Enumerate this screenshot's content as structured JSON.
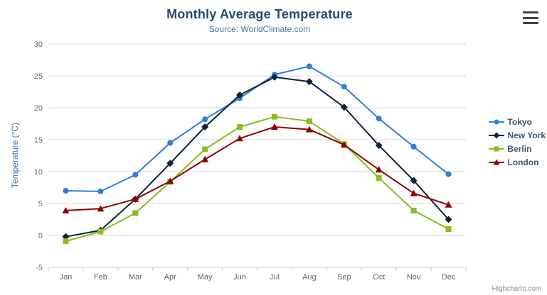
{
  "header": {
    "title": "Monthly Average Temperature",
    "subtitle": "Source: WorldClimate.com"
  },
  "chart_data": {
    "type": "line",
    "title": "Monthly Average Temperature",
    "subtitle": "Source: WorldClimate.com",
    "xlabel": "",
    "ylabel": "Temperature (°C)",
    "ylim": [
      -5,
      30
    ],
    "ytick_step": 5,
    "grid": true,
    "legend_position": "right",
    "categories": [
      "Jan",
      "Feb",
      "Mar",
      "Apr",
      "May",
      "Jun",
      "Jul",
      "Aug",
      "Sep",
      "Oct",
      "Nov",
      "Dec"
    ],
    "series": [
      {
        "name": "Tokyo",
        "color": "#2f7ed8",
        "marker": "circle",
        "values": [
          7.0,
          6.9,
          9.5,
          14.5,
          18.2,
          21.5,
          25.2,
          26.5,
          23.3,
          18.3,
          13.9,
          9.6
        ]
      },
      {
        "name": "New York",
        "color": "#0d233a",
        "marker": "diamond",
        "values": [
          -0.2,
          0.8,
          5.7,
          11.3,
          17.0,
          22.0,
          24.8,
          24.1,
          20.1,
          14.1,
          8.6,
          2.5
        ]
      },
      {
        "name": "Berlin",
        "color": "#8bbc21",
        "marker": "square",
        "values": [
          -0.9,
          0.6,
          3.5,
          8.4,
          13.5,
          17.0,
          18.6,
          17.9,
          14.3,
          9.0,
          3.9,
          1.0
        ]
      },
      {
        "name": "London",
        "color": "#910000",
        "marker": "triangle",
        "values": [
          3.9,
          4.2,
          5.7,
          8.5,
          11.9,
          15.2,
          17.0,
          16.6,
          14.2,
          10.3,
          6.6,
          4.8
        ]
      }
    ]
  },
  "credits": {
    "label": "Highcharts.com"
  }
}
